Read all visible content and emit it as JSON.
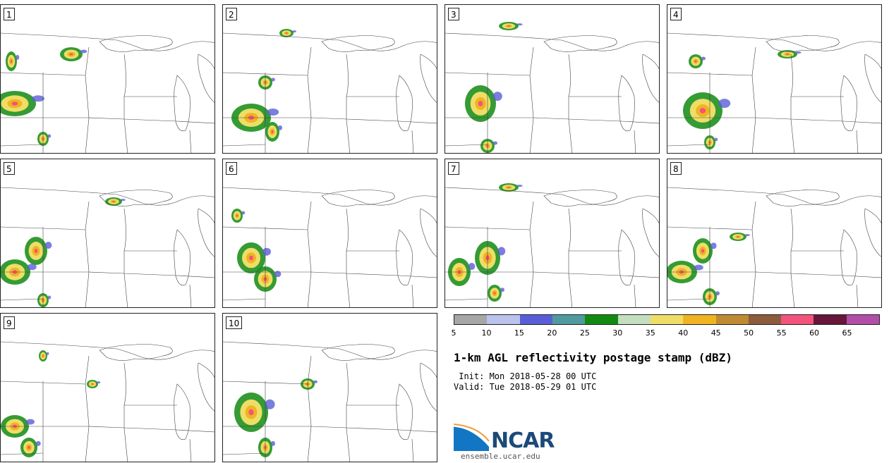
{
  "panels": [
    {
      "label": "1"
    },
    {
      "label": "2"
    },
    {
      "label": "3"
    },
    {
      "label": "4"
    },
    {
      "label": "5"
    },
    {
      "label": "6"
    },
    {
      "label": "7"
    },
    {
      "label": "8"
    },
    {
      "label": "9"
    },
    {
      "label": "10"
    }
  ],
  "colorbar": {
    "colors": [
      "#a6a6a6",
      "#b9c3ec",
      "#5a5ed6",
      "#4f9a9e",
      "#128a10",
      "#c3dfbf",
      "#eede67",
      "#f0b422",
      "#bf8a31",
      "#8c5c3c",
      "#f2547c",
      "#67173a",
      "#b04ea8"
    ],
    "ticks": [
      "5",
      "10",
      "15",
      "20",
      "25",
      "30",
      "35",
      "40",
      "45",
      "50",
      "55",
      "60",
      "65"
    ]
  },
  "title": "1-km AGL reflectivity postage stamp (dBZ)",
  "init": " Init: Mon 2018-05-28 00 UTC",
  "valid": "Valid: Tue 2018-05-29 01 UTC",
  "logo": {
    "text": "NCAR",
    "url": "ensemble.ucar.edu"
  }
}
